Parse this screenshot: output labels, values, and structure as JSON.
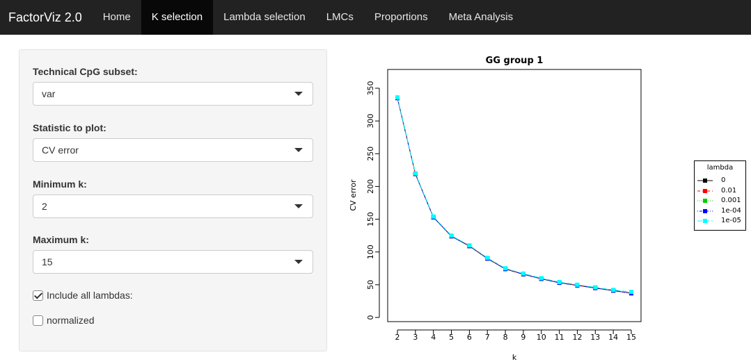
{
  "navbar": {
    "brand": "FactorViz 2.0",
    "tabs": [
      {
        "label": "Home"
      },
      {
        "label": "K selection",
        "active": true
      },
      {
        "label": "Lambda selection"
      },
      {
        "label": "LMCs"
      },
      {
        "label": "Proportions"
      },
      {
        "label": "Meta Analysis"
      }
    ],
    "background": "#222222",
    "active_background": "#080808"
  },
  "sidebar": {
    "cpg_subset": {
      "label": "Technical CpG subset:",
      "value": "var"
    },
    "statistic": {
      "label": "Statistic to plot:",
      "value": "CV error"
    },
    "min_k": {
      "label": "Minimum k:",
      "value": "2"
    },
    "max_k": {
      "label": "Maximum k:",
      "value": "15"
    },
    "include_lambdas": {
      "label": "Include all lambdas:",
      "checked": true
    },
    "normalized": {
      "label": "normalized",
      "checked": false
    }
  },
  "chart_data": {
    "type": "line",
    "title": "GG group 1",
    "xlabel": "k",
    "ylabel": "CV error",
    "x": [
      2,
      3,
      4,
      5,
      6,
      7,
      8,
      9,
      10,
      11,
      12,
      13,
      14,
      15
    ],
    "xlim": [
      2,
      15
    ],
    "ylim": [
      0,
      350
    ],
    "yticks": [
      0,
      50,
      100,
      150,
      200,
      250,
      300,
      350
    ],
    "legend_title": "lambda",
    "legend_position": "right",
    "series": [
      {
        "name": "0",
        "color": "#000000",
        "line": "solid",
        "values": [
          335,
          219,
          153,
          124,
          109,
          90,
          74,
          66,
          59,
          53,
          49,
          45,
          41,
          37
        ]
      },
      {
        "name": "0.01",
        "color": "#ff0000",
        "line": "dashed",
        "values": [
          335,
          219,
          153,
          124,
          109,
          90,
          74,
          66,
          59,
          53,
          49,
          45,
          41,
          37
        ]
      },
      {
        "name": "0.001",
        "color": "#00cd00",
        "line": "dotted",
        "values": [
          335,
          219,
          153,
          124,
          109,
          90,
          74,
          66,
          59,
          53,
          49,
          45,
          41,
          37
        ]
      },
      {
        "name": "1e-04",
        "color": "#0000ff",
        "line": "dotdash",
        "values": [
          335,
          219,
          153,
          124,
          109,
          90,
          74,
          66,
          59,
          53,
          49,
          45,
          41,
          37
        ]
      },
      {
        "name": "1e-05",
        "color": "#00ffff",
        "line": "longdash",
        "values": [
          336,
          220,
          154,
          125,
          110,
          91,
          75,
          67,
          60,
          54,
          50,
          46,
          42,
          39
        ]
      }
    ]
  }
}
